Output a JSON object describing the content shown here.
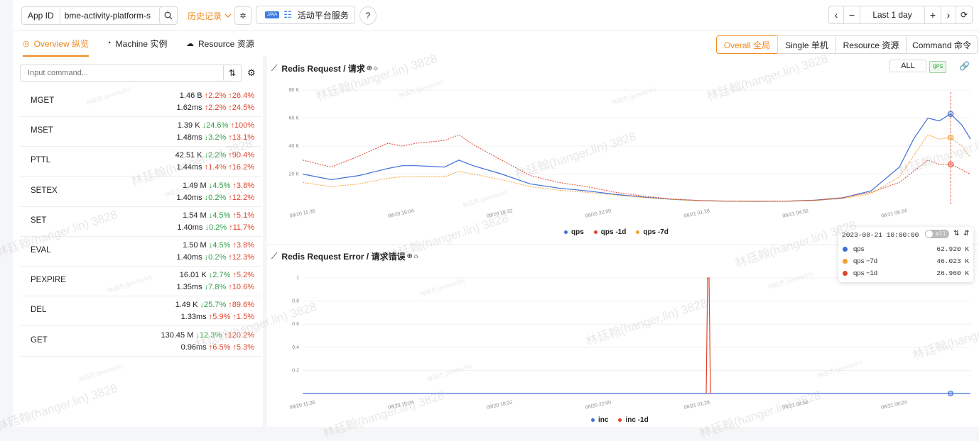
{
  "topbar": {
    "app_id_label": "App ID",
    "app_id_value": "bme-activity-platform-s",
    "history_label": "历史记录",
    "service_badge": "JAVA",
    "service_name": "活动平台服务",
    "range_label": "Last 1 day"
  },
  "tabs": [
    {
      "label": "Overview 纵览",
      "active": true
    },
    {
      "label": "Machine 实例",
      "active": false
    },
    {
      "label": "Resource 资源",
      "active": false
    }
  ],
  "views": [
    {
      "label": "Overall 全局",
      "active": true
    },
    {
      "label": "Single 单机",
      "active": false
    },
    {
      "label": "Resource 资源",
      "active": false
    },
    {
      "label": "Command 命令",
      "active": false
    }
  ],
  "command_input": {
    "placeholder": "Input command..."
  },
  "commands": [
    {
      "name": "MGET",
      "count": "1.46 B",
      "c1": "2.2%",
      "c1dir": "up",
      "c2": "26.4%",
      "c2dir": "up",
      "lat": "1.62ms",
      "l1": "2.2%",
      "l1dir": "up",
      "l2": "24.5%",
      "l2dir": "up"
    },
    {
      "name": "MSET",
      "count": "1.39 K",
      "c1": "24.6%",
      "c1dir": "dn",
      "c2": "100%",
      "c2dir": "up",
      "lat": "1.48ms",
      "l1": "3.2%",
      "l1dir": "dn",
      "l2": "13.1%",
      "l2dir": "up"
    },
    {
      "name": "PTTL",
      "count": "42.51 K",
      "c1": "2.2%",
      "c1dir": "dn",
      "c2": "90.4%",
      "c2dir": "up",
      "lat": "1.44ms",
      "l1": "1.4%",
      "l1dir": "up",
      "l2": "16.2%",
      "l2dir": "up"
    },
    {
      "name": "SETEX",
      "count": "1.49 M",
      "c1": "4.5%",
      "c1dir": "dn",
      "c2": "3.8%",
      "c2dir": "up",
      "lat": "1.40ms",
      "l1": "0.2%",
      "l1dir": "dn",
      "l2": "12.2%",
      "l2dir": "up"
    },
    {
      "name": "SET",
      "count": "1.54 M",
      "c1": "4.5%",
      "c1dir": "dn",
      "c2": "5.1%",
      "c2dir": "up",
      "lat": "1.40ms",
      "l1": "0.2%",
      "l1dir": "dn",
      "l2": "11.7%",
      "l2dir": "up"
    },
    {
      "name": "EVAL",
      "count": "1.50 M",
      "c1": "4.5%",
      "c1dir": "dn",
      "c2": "3.8%",
      "c2dir": "up",
      "lat": "1.40ms",
      "l1": "0.2%",
      "l1dir": "dn",
      "l2": "12.3%",
      "l2dir": "up"
    },
    {
      "name": "PEXPIRE",
      "count": "16.01 K",
      "c1": "2.7%",
      "c1dir": "dn",
      "c2": "5.2%",
      "c2dir": "up",
      "lat": "1.35ms",
      "l1": "7.8%",
      "l1dir": "dn",
      "l2": "10.6%",
      "l2dir": "up"
    },
    {
      "name": "DEL",
      "count": "1.49 K",
      "c1": "25.7%",
      "c1dir": "dn",
      "c2": "89.6%",
      "c2dir": "up",
      "lat": "1.33ms",
      "l1": "5.9%",
      "l1dir": "up",
      "l2": "1.5%",
      "l2dir": "up"
    },
    {
      "name": "GET",
      "count": "130.45 M",
      "c1": "12.3%",
      "c1dir": "dn",
      "c2": "120.2%",
      "c2dir": "up",
      "lat": "0.96ms",
      "l1": "6.5%",
      "l1dir": "up",
      "l2": "5.3%",
      "l2dir": "up"
    }
  ],
  "charts_text": {
    "req_title": "Redis Request / 请求",
    "err_title": "Redis Request Error / 请求错误",
    "all_label": "ALL",
    "qps_badge": "QPS"
  },
  "watermark": {
    "main": "林廷翰(hanger.lin) 3828",
    "small": "林廷杰 (jeremy.lin)"
  },
  "tooltip": {
    "time": "2023-08-21 10:00:00",
    "toggle": "all",
    "rows": [
      {
        "name": "qps",
        "value": "62.920 K",
        "color": "#3f6fd6"
      },
      {
        "name": "qps −7d",
        "value": "46.023 K",
        "color": "#f0a030"
      },
      {
        "name": "qps −1d",
        "value": "26.960 K",
        "color": "#e0452b"
      }
    ]
  },
  "chart_data": [
    {
      "type": "line",
      "title": "Redis Request / 请求",
      "x_ticks": [
        "08/20 11:36",
        "08/20 15:04",
        "08/20 18:32",
        "08/20 22:00",
        "08/21 01:28",
        "08/21 04:56",
        "08/21 08:24"
      ],
      "y_ticks": [
        "20 K",
        "40 K",
        "60 K",
        "80 K"
      ],
      "ylim": [
        0,
        80000
      ],
      "x_hours": [
        0,
        1,
        2,
        3,
        3.5,
        4,
        5,
        5.5,
        6,
        7,
        8,
        9,
        10,
        11,
        12,
        13,
        14,
        15,
        16,
        17,
        18,
        19,
        20,
        21,
        21.5,
        22,
        22.4,
        22.8,
        23.2,
        23.5
      ],
      "series": [
        {
          "name": "qps",
          "color": "#3f6fd6",
          "dashed": false,
          "values": [
            20000,
            16000,
            19000,
            24000,
            26000,
            26000,
            25000,
            30000,
            26000,
            20000,
            13000,
            10000,
            8000,
            5500,
            3500,
            2000,
            1000,
            600,
            500,
            600,
            1200,
            3000,
            8000,
            25000,
            45000,
            60000,
            58000,
            62920,
            55000,
            45000
          ]
        },
        {
          "name": "qps -1d",
          "color": "#e0452b",
          "dashed": true,
          "values": [
            30000,
            25000,
            33000,
            42000,
            40000,
            42000,
            44000,
            48000,
            41000,
            30000,
            19000,
            14000,
            11000,
            7000,
            4200,
            2200,
            1100,
            700,
            600,
            700,
            1400,
            3200,
            7000,
            14000,
            22000,
            30000,
            27000,
            26960,
            23000,
            20000
          ]
        },
        {
          "name": "qps -7d",
          "color": "#f0a030",
          "dashed": true,
          "values": [
            14000,
            11000,
            13000,
            17000,
            18000,
            18000,
            18000,
            22000,
            20000,
            16000,
            11000,
            8500,
            7000,
            5000,
            3300,
            1900,
            900,
            500,
            400,
            500,
            1000,
            2500,
            6000,
            18000,
            33000,
            48000,
            45000,
            46023,
            40000,
            32000
          ]
        }
      ],
      "legend": [
        "qps",
        "qps -1d",
        "qps -7d"
      ]
    },
    {
      "type": "line",
      "title": "Redis Request Error / 请求错误",
      "x_ticks": [
        "08/20 11:36",
        "08/20 15:04",
        "08/20 18:32",
        "08/20 22:00",
        "08/21 01:28",
        "08/21 04:56",
        "08/21 08:24"
      ],
      "y_ticks": [
        "0.2",
        "0.4",
        "0.6",
        "0.8",
        "1"
      ],
      "ylim": [
        0,
        1
      ],
      "series": [
        {
          "name": "inc",
          "color": "#3f6fd6",
          "x_hours": [
            0,
            23.5
          ],
          "values": [
            0,
            0
          ]
        },
        {
          "name": "inc -1d",
          "color": "#e0452b",
          "x_hours": [
            14.2,
            14.25,
            14.3,
            14.35
          ],
          "values": [
            0,
            1,
            1,
            0
          ]
        }
      ],
      "legend": [
        "inc",
        "inc -1d"
      ]
    }
  ]
}
